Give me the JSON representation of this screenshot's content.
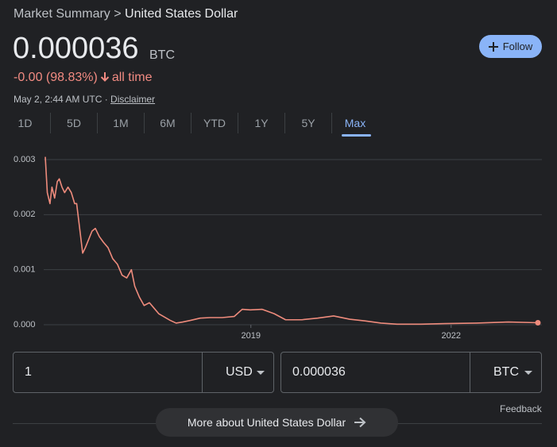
{
  "breadcrumb": {
    "parent": "Market Summary",
    "separator": ">",
    "current": "United States Dollar"
  },
  "price": "0.000036",
  "price_unit": "BTC",
  "change": "-0.00 (98.83%)",
  "change_period": "all time",
  "timestamp": "May 2, 2:44 AM UTC ·",
  "disclaimer": "Disclaimer",
  "follow": "Follow",
  "tabs": [
    "1D",
    "5D",
    "1M",
    "6M",
    "YTD",
    "1Y",
    "5Y",
    "Max"
  ],
  "chart_data": {
    "type": "line",
    "color": "#ee8b7c",
    "x": [
      2015.92,
      2015.95,
      2015.99,
      2016.02,
      2016.06,
      2016.1,
      2016.13,
      2016.17,
      2016.21,
      2016.26,
      2016.31,
      2016.36,
      2016.39,
      2016.43,
      2016.48,
      2016.52,
      2016.57,
      2016.62,
      2016.67,
      2016.73,
      2016.79,
      2016.86,
      2016.93,
      2017.0,
      2017.07,
      2017.14,
      2017.21,
      2017.26,
      2017.33,
      2017.4,
      2017.48,
      2017.55,
      2017.62,
      2017.69,
      2017.79,
      2017.88,
      2017.98,
      2018.1,
      2018.24,
      2018.39,
      2018.57,
      2018.75,
      2018.87,
      2018.99,
      2019.17,
      2019.35,
      2019.52,
      2019.76,
      2020.0,
      2020.24,
      2020.48,
      2020.71,
      2020.95,
      2021.19,
      2021.55,
      2021.9,
      2022.38,
      2022.86,
      2023.3
    ],
    "values": [
      0.00305,
      0.0024,
      0.0022,
      0.0025,
      0.0023,
      0.0026,
      0.00265,
      0.0025,
      0.0024,
      0.0025,
      0.0024,
      0.0022,
      0.0022,
      0.0018,
      0.0013,
      0.0014,
      0.00155,
      0.0017,
      0.00175,
      0.0016,
      0.0015,
      0.0014,
      0.0012,
      0.0011,
      0.0009,
      0.00085,
      0.001,
      0.0007,
      0.0005,
      0.00035,
      0.0004,
      0.0003,
      0.0002,
      0.00015,
      8e-05,
      3e-05,
      5e-05,
      8e-05,
      0.00012,
      0.00013,
      0.00013,
      0.00015,
      0.00028,
      0.00027,
      0.00028,
      0.0002,
      9e-05,
      9e-05,
      0.00012,
      0.00016,
      0.0001,
      7e-05,
      3e-05,
      1e-05,
      1e-05,
      2e-05,
      3e-05,
      5e-05,
      3.6e-05
    ],
    "xlim": [
      2015.92,
      2023.36
    ],
    "ylim": [
      0,
      0.003
    ],
    "xticks": [
      2019,
      2022
    ],
    "yticks": [
      {
        "value": 0,
        "label": "0.000"
      },
      0.001,
      0.002,
      0.003
    ],
    "grid": true
  },
  "converter": {
    "from_amount": "1",
    "from_currency": "USD",
    "to_amount": "0.000036",
    "to_currency": "BTC"
  },
  "feedback": "Feedback",
  "more": "More about United States Dollar"
}
